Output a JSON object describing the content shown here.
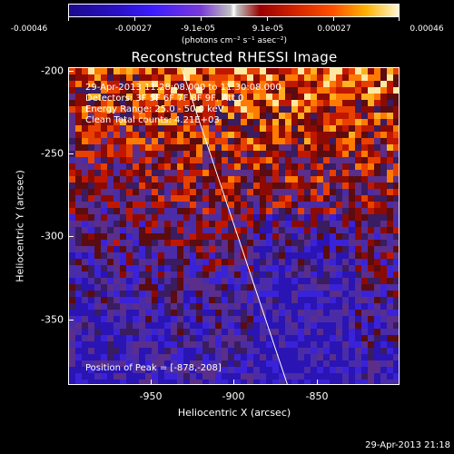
{
  "colorbar": {
    "labels": [
      "-0.00046",
      "-0.00027",
      "-9.1e-05",
      "9.1e-05",
      "0.00027",
      "0.00046"
    ],
    "units": "(photons cm⁻² s⁻¹ asec⁻²)"
  },
  "title": "Reconstructed RHESSI Image",
  "info": {
    "time": "29-Apr-2013 11:28:08.000 to 11:30:08.000",
    "detectors": "Detectors: 3F 5F 6F 7F 8F 9F, Att 0",
    "energy": "Energy Range: 25.0 - 50.0 keV",
    "method": "Clean    Total counts: 4.21E+03",
    "peak": "Position of Peak = [-878,-208]"
  },
  "axes": {
    "xlabel": "Heliocentric X (arcsec)",
    "ylabel": "Heliocentric Y (arcsec)",
    "xticks": [
      "-950",
      "-900",
      "-850"
    ],
    "yticks": [
      "-200",
      "-250",
      "-300",
      "-350"
    ]
  },
  "timestamp": "29-Apr-2013 21:18"
}
